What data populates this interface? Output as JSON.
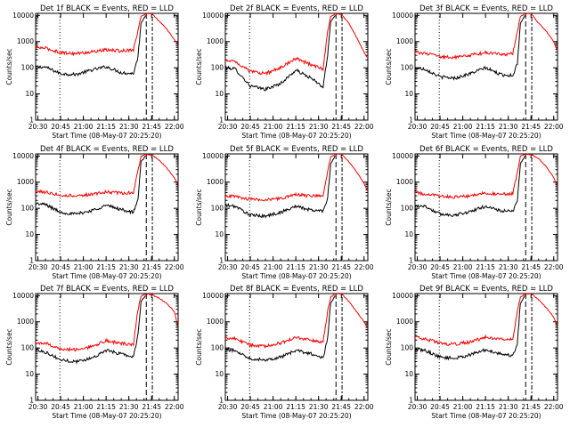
{
  "colors": {
    "events": "#000000",
    "lld": "#ff0000",
    "background": "#ffffff",
    "axes": "#000000"
  },
  "chart_data": [
    {
      "type": "line",
      "detector": "1f",
      "title": "Det 1f BLACK = Events, RED = LLD",
      "xlabel": "Start Time (08-May-07 20:25:20)",
      "ylabel": "Counts/sec",
      "xtick_labels": [
        "20:30",
        "20:45",
        "21:00",
        "21:15",
        "21:30",
        "21:45",
        "22:00"
      ],
      "ytick_labels": [
        "1",
        "10",
        "100",
        "1000",
        "10000"
      ],
      "yscale": "log",
      "ylim": [
        1,
        12000
      ],
      "x": [
        "20:28",
        "20:35",
        "20:45",
        "20:55",
        "21:05",
        "21:15",
        "21:25",
        "21:33",
        "21:36",
        "21:38",
        "21:41",
        "21:45",
        "21:50",
        "21:55",
        "22:00",
        "22:02"
      ],
      "series": [
        {
          "name": "Events",
          "values": [
            110,
            105,
            60,
            55,
            80,
            110,
            65,
            60,
            250,
            5000,
            10000,
            null,
            null,
            null,
            null,
            null
          ]
        },
        {
          "name": "LLD",
          "values": [
            600,
            560,
            380,
            350,
            400,
            480,
            440,
            500,
            2500,
            9000,
            11500,
            12000,
            6000,
            3000,
            1200,
            800
          ]
        }
      ]
    },
    {
      "type": "line",
      "detector": "2f",
      "title": "Det 2f BLACK = Events, RED = LLD",
      "xlabel": "Start Time (08-May-07 20:25:20)",
      "ylabel": "Counts/sec",
      "xtick_labels": [
        "20:30",
        "20:45",
        "21:00",
        "21:15",
        "21:30",
        "21:45",
        "22:00"
      ],
      "ytick_labels": [
        "1",
        "10",
        "100",
        "1000",
        "10000"
      ],
      "yscale": "log",
      "ylim": [
        1,
        12000
      ],
      "x": [
        "20:28",
        "20:35",
        "20:45",
        "20:55",
        "21:05",
        "21:15",
        "21:25",
        "21:33",
        "21:36",
        "21:38",
        "21:41",
        "21:45",
        "21:50",
        "21:55",
        "22:00",
        "22:02"
      ],
      "series": [
        {
          "name": "Events",
          "values": [
            100,
            90,
            20,
            15,
            25,
            80,
            40,
            18,
            300,
            6000,
            10000,
            null,
            null,
            null,
            null,
            null
          ]
        },
        {
          "name": "LLD",
          "values": [
            200,
            180,
            70,
            60,
            100,
            230,
            130,
            90,
            2500,
            9000,
            11500,
            11000,
            5000,
            1500,
            400,
            250
          ]
        }
      ]
    },
    {
      "type": "line",
      "detector": "3f",
      "title": "Det 3f BLACK = Events, RED = LLD",
      "xlabel": "Start Time (08-May-07 20:25:20)",
      "ylabel": "Counts/sec",
      "xtick_labels": [
        "20:30",
        "20:45",
        "21:00",
        "21:15",
        "21:30",
        "21:45",
        "22:00"
      ],
      "ytick_labels": [
        "1",
        "10",
        "100",
        "1000",
        "10000"
      ],
      "yscale": "log",
      "ylim": [
        1,
        12000
      ],
      "x": [
        "20:28",
        "20:35",
        "20:45",
        "20:55",
        "21:05",
        "21:15",
        "21:25",
        "21:33",
        "21:36",
        "21:38",
        "21:41",
        "21:45",
        "21:50",
        "21:55",
        "22:00",
        "22:02"
      ],
      "series": [
        {
          "name": "Events",
          "values": [
            100,
            90,
            45,
            40,
            60,
            100,
            55,
            50,
            150,
            5000,
            10000,
            null,
            null,
            null,
            null,
            null
          ]
        },
        {
          "name": "LLD",
          "values": [
            400,
            360,
            260,
            250,
            300,
            380,
            320,
            350,
            2500,
            9000,
            11500,
            12000,
            5000,
            2500,
            1000,
            500
          ]
        }
      ]
    },
    {
      "type": "line",
      "detector": "4f",
      "title": "Det 4f BLACK = Events, RED = LLD",
      "xlabel": "Start Time (08-May-07 20:25:20)",
      "ylabel": "Counts/sec",
      "xtick_labels": [
        "20:30",
        "20:45",
        "21:00",
        "21:15",
        "21:30",
        "21:45",
        "22:00"
      ],
      "ytick_labels": [
        "1",
        "10",
        "100",
        "1000",
        "10000"
      ],
      "yscale": "log",
      "ylim": [
        1,
        12000
      ],
      "x": [
        "20:28",
        "20:35",
        "20:45",
        "20:55",
        "21:05",
        "21:15",
        "21:25",
        "21:33",
        "21:36",
        "21:38",
        "21:41",
        "21:45",
        "21:50",
        "21:55",
        "22:00",
        "22:02"
      ],
      "series": [
        {
          "name": "Events",
          "values": [
            150,
            140,
            70,
            60,
            80,
            130,
            90,
            70,
            200,
            6000,
            10000,
            null,
            null,
            null,
            null,
            null
          ]
        },
        {
          "name": "LLD",
          "values": [
            450,
            420,
            320,
            300,
            340,
            420,
            380,
            400,
            2500,
            9500,
            11500,
            11000,
            7000,
            3500,
            1500,
            900
          ]
        }
      ]
    },
    {
      "type": "line",
      "detector": "5f",
      "title": "Det 5f BLACK = Events, RED = LLD",
      "xlabel": "Start Time (08-May-07 20:25:20)",
      "ylabel": "Counts/sec",
      "xtick_labels": [
        "20:30",
        "20:45",
        "21:00",
        "21:15",
        "21:30",
        "21:45",
        "22:00"
      ],
      "ytick_labels": [
        "1",
        "10",
        "100",
        "1000",
        "10000"
      ],
      "yscale": "log",
      "ylim": [
        1,
        12000
      ],
      "x": [
        "20:28",
        "20:35",
        "20:45",
        "20:55",
        "21:05",
        "21:15",
        "21:25",
        "21:33",
        "21:36",
        "21:38",
        "21:41",
        "21:45",
        "21:50",
        "21:55",
        "22:00",
        "22:02"
      ],
      "series": [
        {
          "name": "Events",
          "values": [
            130,
            120,
            55,
            50,
            70,
            120,
            85,
            80,
            250,
            5000,
            10000,
            null,
            null,
            null,
            null,
            null
          ]
        },
        {
          "name": "LLD",
          "values": [
            300,
            280,
            220,
            210,
            240,
            330,
            300,
            320,
            2500,
            9000,
            11500,
            12000,
            6000,
            2500,
            900,
            500
          ]
        }
      ]
    },
    {
      "type": "line",
      "detector": "6f",
      "title": "Det 6f BLACK = Events, RED = LLD",
      "xlabel": "Start Time (08-May-07 20:25:20)",
      "ylabel": "Counts/sec",
      "xtick_labels": [
        "20:30",
        "20:45",
        "21:00",
        "21:15",
        "21:30",
        "21:45",
        "22:00"
      ],
      "ytick_labels": [
        "1",
        "10",
        "100",
        "1000",
        "10000"
      ],
      "yscale": "log",
      "ylim": [
        1,
        12000
      ],
      "x": [
        "20:28",
        "20:35",
        "20:45",
        "20:55",
        "21:05",
        "21:15",
        "21:25",
        "21:33",
        "21:36",
        "21:38",
        "21:41",
        "21:45",
        "21:50",
        "21:55",
        "22:00",
        "22:02"
      ],
      "series": [
        {
          "name": "Events",
          "values": [
            130,
            120,
            60,
            55,
            75,
            120,
            80,
            75,
            200,
            5000,
            10000,
            null,
            null,
            null,
            null,
            null
          ]
        },
        {
          "name": "LLD",
          "values": [
            400,
            360,
            280,
            270,
            300,
            380,
            340,
            360,
            2500,
            9500,
            11500,
            11500,
            8000,
            4000,
            1500,
            800
          ]
        }
      ]
    },
    {
      "type": "line",
      "detector": "7f",
      "title": "Det 7f BLACK = Events, RED = LLD",
      "xlabel": "Start Time (08-May-07 20:25:20)",
      "ylabel": "Counts/sec",
      "xtick_labels": [
        "20:30",
        "20:45",
        "21:00",
        "21:15",
        "21:30",
        "21:45",
        "22:00"
      ],
      "ytick_labels": [
        "1",
        "10",
        "100",
        "1000",
        "10000"
      ],
      "yscale": "log",
      "ylim": [
        1,
        12000
      ],
      "x": [
        "20:28",
        "20:35",
        "20:45",
        "20:55",
        "21:05",
        "21:15",
        "21:25",
        "21:33",
        "21:36",
        "21:38",
        "21:41",
        "21:45",
        "21:50",
        "21:55",
        "22:00",
        "22:02"
      ],
      "series": [
        {
          "name": "Events",
          "values": [
            90,
            70,
            35,
            30,
            40,
            80,
            60,
            45,
            300,
            6000,
            10000,
            null,
            null,
            null,
            null,
            null
          ]
        },
        {
          "name": "LLD",
          "values": [
            160,
            150,
            90,
            85,
            110,
            190,
            150,
            130,
            3000,
            9500,
            11500,
            11000,
            8000,
            5000,
            2500,
            800
          ]
        }
      ]
    },
    {
      "type": "line",
      "detector": "8f",
      "title": "Det 8f BLACK = Events, RED = LLD",
      "xlabel": "Start Time (08-May-07 20:25:20)",
      "ylabel": "Counts/sec",
      "xtick_labels": [
        "20:30",
        "20:45",
        "21:00",
        "21:15",
        "21:30",
        "21:45",
        "22:00"
      ],
      "ytick_labels": [
        "1",
        "10",
        "100",
        "1000",
        "10000"
      ],
      "yscale": "log",
      "ylim": [
        1,
        12000
      ],
      "x": [
        "20:28",
        "20:35",
        "20:45",
        "20:55",
        "21:05",
        "21:15",
        "21:25",
        "21:33",
        "21:36",
        "21:38",
        "21:41",
        "21:45",
        "21:50",
        "21:55",
        "22:00",
        "22:02"
      ],
      "series": [
        {
          "name": "Events",
          "values": [
            90,
            80,
            40,
            35,
            45,
            80,
            60,
            40,
            250,
            5000,
            10000,
            null,
            null,
            null,
            null,
            null
          ]
        },
        {
          "name": "LLD",
          "values": [
            250,
            230,
            130,
            120,
            150,
            250,
            200,
            170,
            2500,
            9000,
            11500,
            12000,
            6000,
            2500,
            1000,
            600
          ]
        }
      ]
    },
    {
      "type": "line",
      "detector": "9f",
      "title": "Det 9f BLACK = Events, RED = LLD",
      "xlabel": "Start Time (08-May-07 20:25:20)",
      "ylabel": "Counts/sec",
      "xtick_labels": [
        "20:30",
        "20:45",
        "21:00",
        "21:15",
        "21:30",
        "21:45",
        "22:00"
      ],
      "ytick_labels": [
        "1",
        "10",
        "100",
        "1000",
        "10000"
      ],
      "yscale": "log",
      "ylim": [
        1,
        12000
      ],
      "x": [
        "20:28",
        "20:35",
        "20:45",
        "20:55",
        "21:05",
        "21:15",
        "21:25",
        "21:33",
        "21:36",
        "21:38",
        "21:41",
        "21:45",
        "21:50",
        "21:55",
        "22:00",
        "22:02"
      ],
      "series": [
        {
          "name": "Events",
          "values": [
            90,
            80,
            45,
            40,
            55,
            85,
            60,
            50,
            150,
            5000,
            10000,
            null,
            null,
            null,
            null,
            null
          ]
        },
        {
          "name": "LLD",
          "values": [
            250,
            230,
            150,
            140,
            170,
            260,
            220,
            210,
            2500,
            9000,
            11500,
            12000,
            7000,
            3500,
            1500,
            800
          ]
        }
      ]
    }
  ]
}
